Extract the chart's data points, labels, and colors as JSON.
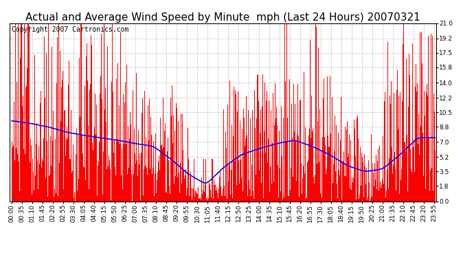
{
  "title": "Actual and Average Wind Speed by Minute  mph (Last 24 Hours) 20070321",
  "copyright": "Copyright 2007 Cartronics.com",
  "yticks": [
    0.0,
    1.8,
    3.5,
    5.2,
    7.0,
    8.8,
    10.5,
    12.2,
    14.0,
    15.8,
    17.5,
    19.2,
    21.0
  ],
  "ymax": 21.0,
  "ymin": 0.0,
  "bar_color": "#FF0000",
  "line_color": "#0000FF",
  "bg_color": "#FFFFFF",
  "grid_color": "#AAAAAA",
  "title_fontsize": 11,
  "copyright_fontsize": 7,
  "tick_fontsize": 6.5,
  "avg_pattern_hours": [
    9.5,
    9.2,
    8.8,
    8.2,
    7.8,
    7.5,
    7.2,
    6.8,
    6.5,
    5.0,
    3.2,
    2.0,
    4.0,
    5.5,
    6.2,
    6.8,
    7.2,
    6.5,
    5.5,
    4.2,
    3.5,
    3.8,
    5.5,
    7.5
  ]
}
